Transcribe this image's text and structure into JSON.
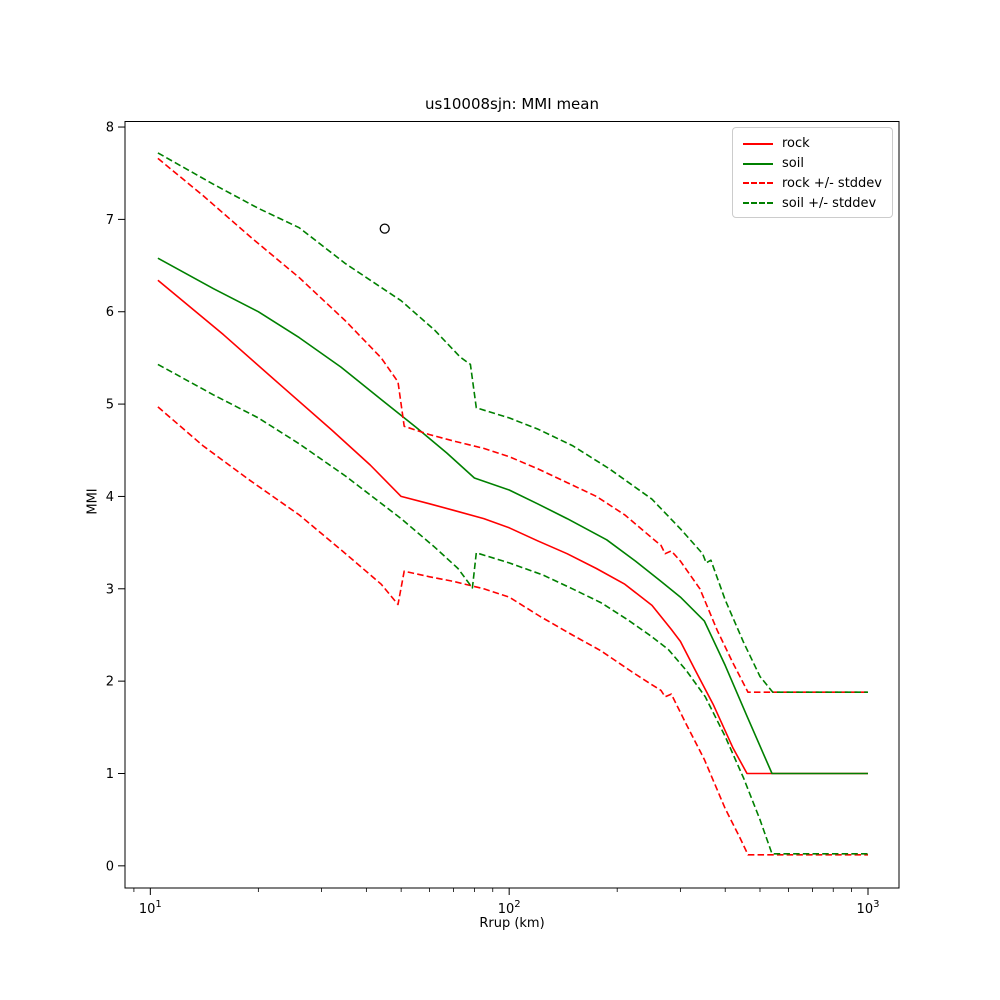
{
  "title": "us10008sjn: MMI mean",
  "axes": {
    "xlabel": "Rrup (km)",
    "ylabel": "MMI",
    "x_scale": "log",
    "xlim": [
      8.5,
      1220
    ],
    "ylim": [
      -0.24,
      8.06
    ],
    "x_major_tick_exponents": [
      1,
      2,
      3
    ],
    "x_minor_tick_mantissas": [
      2,
      3,
      4,
      5,
      6,
      7,
      8,
      9
    ],
    "y_ticks": [
      0,
      1,
      2,
      3,
      4,
      5,
      6,
      7,
      8
    ]
  },
  "legend": {
    "entries": [
      {
        "label": "rock",
        "color": "#ff0000",
        "dash": false
      },
      {
        "label": "soil",
        "color": "#008000",
        "dash": false
      },
      {
        "label": "rock +/- stddev",
        "color": "#ff0000",
        "dash": true
      },
      {
        "label": "soil +/- stddev",
        "color": "#008000",
        "dash": true
      }
    ]
  },
  "chart_data": {
    "type": "line",
    "title": "us10008sjn: MMI mean",
    "xlabel": "Rrup (km)",
    "ylabel": "MMI",
    "x_scale": "log",
    "xlim": [
      8.5,
      1220
    ],
    "ylim": [
      -0.24,
      8.06
    ],
    "legend_position": "upper right",
    "grid": false,
    "observation_point": {
      "x": 45,
      "y": 6.9,
      "marker": "open-circle",
      "color": "#000000"
    },
    "series": [
      {
        "name": "rock",
        "color": "#ff0000",
        "style": "solid",
        "points": [
          [
            10.5,
            6.34
          ],
          [
            16,
            5.75
          ],
          [
            23,
            5.21
          ],
          [
            32,
            4.72
          ],
          [
            41,
            4.34
          ],
          [
            50,
            4.0
          ],
          [
            60,
            3.92
          ],
          [
            70,
            3.85
          ],
          [
            85,
            3.76
          ],
          [
            100,
            3.66
          ],
          [
            120,
            3.52
          ],
          [
            145,
            3.38
          ],
          [
            175,
            3.22
          ],
          [
            210,
            3.05
          ],
          [
            250,
            2.82
          ],
          [
            283,
            2.56
          ],
          [
            300,
            2.43
          ],
          [
            330,
            2.12
          ],
          [
            370,
            1.75
          ],
          [
            420,
            1.28
          ],
          [
            460,
            1.0
          ],
          [
            1000,
            1.0
          ]
        ]
      },
      {
        "name": "soil",
        "color": "#008000",
        "style": "solid",
        "points": [
          [
            10.5,
            6.58
          ],
          [
            15,
            6.25
          ],
          [
            20,
            6.0
          ],
          [
            26,
            5.72
          ],
          [
            34,
            5.4
          ],
          [
            44,
            5.05
          ],
          [
            55,
            4.75
          ],
          [
            67,
            4.47
          ],
          [
            80,
            4.2
          ],
          [
            100,
            4.07
          ],
          [
            120,
            3.92
          ],
          [
            145,
            3.76
          ],
          [
            187,
            3.53
          ],
          [
            225,
            3.3
          ],
          [
            265,
            3.08
          ],
          [
            300,
            2.91
          ],
          [
            350,
            2.65
          ],
          [
            400,
            2.17
          ],
          [
            460,
            1.62
          ],
          [
            540,
            1.0
          ],
          [
            1000,
            1.0
          ]
        ]
      },
      {
        "name": "rock + stddev",
        "color": "#ff0000",
        "style": "dashed",
        "points": [
          [
            10.5,
            7.66
          ],
          [
            14,
            7.26
          ],
          [
            19,
            6.81
          ],
          [
            26,
            6.37
          ],
          [
            35,
            5.9
          ],
          [
            44,
            5.5
          ],
          [
            49,
            5.24
          ],
          [
            51,
            4.76
          ],
          [
            60,
            4.67
          ],
          [
            70,
            4.6
          ],
          [
            85,
            4.52
          ],
          [
            100,
            4.43
          ],
          [
            120,
            4.3
          ],
          [
            145,
            4.15
          ],
          [
            175,
            4.0
          ],
          [
            210,
            3.8
          ],
          [
            250,
            3.55
          ],
          [
            265,
            3.47
          ],
          [
            272,
            3.38
          ],
          [
            283,
            3.41
          ],
          [
            300,
            3.3
          ],
          [
            340,
            3.0
          ],
          [
            380,
            2.55
          ],
          [
            420,
            2.2
          ],
          [
            463,
            1.88
          ],
          [
            1000,
            1.88
          ]
        ]
      },
      {
        "name": "rock - stddev",
        "color": "#ff0000",
        "style": "dashed",
        "points": [
          [
            10.5,
            4.97
          ],
          [
            14,
            4.55
          ],
          [
            19,
            4.17
          ],
          [
            26,
            3.8
          ],
          [
            35,
            3.38
          ],
          [
            44,
            3.05
          ],
          [
            49,
            2.83
          ],
          [
            51,
            3.19
          ],
          [
            60,
            3.13
          ],
          [
            70,
            3.08
          ],
          [
            85,
            3.0
          ],
          [
            100,
            2.91
          ],
          [
            122,
            2.7
          ],
          [
            150,
            2.5
          ],
          [
            180,
            2.33
          ],
          [
            220,
            2.1
          ],
          [
            250,
            1.96
          ],
          [
            265,
            1.9
          ],
          [
            272,
            1.83
          ],
          [
            283,
            1.86
          ],
          [
            310,
            1.55
          ],
          [
            350,
            1.15
          ],
          [
            400,
            0.62
          ],
          [
            440,
            0.3
          ],
          [
            463,
            0.12
          ],
          [
            1000,
            0.12
          ]
        ]
      },
      {
        "name": "soil + stddev",
        "color": "#008000",
        "style": "dashed",
        "points": [
          [
            10.5,
            7.72
          ],
          [
            15,
            7.38
          ],
          [
            20,
            7.12
          ],
          [
            26,
            6.91
          ],
          [
            35,
            6.52
          ],
          [
            50,
            6.12
          ],
          [
            62,
            5.8
          ],
          [
            73,
            5.51
          ],
          [
            78,
            5.43
          ],
          [
            81,
            4.96
          ],
          [
            100,
            4.85
          ],
          [
            120,
            4.73
          ],
          [
            150,
            4.55
          ],
          [
            190,
            4.3
          ],
          [
            250,
            3.97
          ],
          [
            300,
            3.65
          ],
          [
            346,
            3.38
          ],
          [
            354,
            3.28
          ],
          [
            365,
            3.31
          ],
          [
            400,
            2.88
          ],
          [
            450,
            2.42
          ],
          [
            500,
            2.05
          ],
          [
            543,
            1.88
          ],
          [
            1000,
            1.88
          ]
        ]
      },
      {
        "name": "soil - stddev",
        "color": "#008000",
        "style": "dashed",
        "points": [
          [
            10.5,
            5.43
          ],
          [
            15,
            5.1
          ],
          [
            20,
            4.85
          ],
          [
            26,
            4.57
          ],
          [
            35,
            4.22
          ],
          [
            50,
            3.76
          ],
          [
            62,
            3.45
          ],
          [
            72,
            3.22
          ],
          [
            79,
            3.01
          ],
          [
            81,
            3.39
          ],
          [
            100,
            3.28
          ],
          [
            124,
            3.15
          ],
          [
            150,
            3.0
          ],
          [
            180,
            2.85
          ],
          [
            213,
            2.67
          ],
          [
            250,
            2.48
          ],
          [
            278,
            2.34
          ],
          [
            311,
            2.12
          ],
          [
            336,
            1.94
          ],
          [
            352,
            1.83
          ],
          [
            400,
            1.4
          ],
          [
            450,
            0.95
          ],
          [
            500,
            0.5
          ],
          [
            540,
            0.13
          ],
          [
            1000,
            0.13
          ]
        ]
      }
    ]
  }
}
